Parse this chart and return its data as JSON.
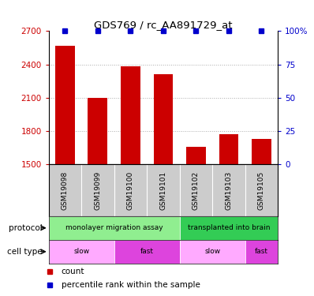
{
  "title": "GDS769 / rc_AA891729_at",
  "samples": [
    "GSM19098",
    "GSM19099",
    "GSM19100",
    "GSM19101",
    "GSM19102",
    "GSM19103",
    "GSM19105"
  ],
  "count_values": [
    2570,
    2100,
    2380,
    2310,
    1660,
    1770,
    1730
  ],
  "percentile_values": [
    100,
    100,
    100,
    100,
    100,
    100,
    100
  ],
  "ylim_left": [
    1500,
    2700
  ],
  "ylim_right": [
    0,
    100
  ],
  "yticks_left": [
    1500,
    1800,
    2100,
    2400,
    2700
  ],
  "yticks_right": [
    0,
    25,
    50,
    75,
    100
  ],
  "ytick_labels_right": [
    "0",
    "25",
    "50",
    "75",
    "100%"
  ],
  "bar_color": "#cc0000",
  "percentile_color": "#0000cc",
  "bar_width": 0.6,
  "protocol_groups": [
    {
      "label": "monolayer migration assay",
      "start": 0,
      "end": 4,
      "color": "#90ee90"
    },
    {
      "label": "transplanted into brain",
      "start": 4,
      "end": 7,
      "color": "#33cc55"
    }
  ],
  "celltype_groups": [
    {
      "label": "slow",
      "start": 0,
      "end": 2,
      "color": "#ffaaff"
    },
    {
      "label": "fast",
      "start": 2,
      "end": 4,
      "color": "#dd44dd"
    },
    {
      "label": "slow",
      "start": 4,
      "end": 6,
      "color": "#ffaaff"
    },
    {
      "label": "fast",
      "start": 6,
      "end": 7,
      "color": "#dd44dd"
    }
  ],
  "xlabel_protocol": "protocol",
  "xlabel_celltype": "cell type",
  "grid_color": "#aaaaaa",
  "sample_bg_color": "#cccccc"
}
